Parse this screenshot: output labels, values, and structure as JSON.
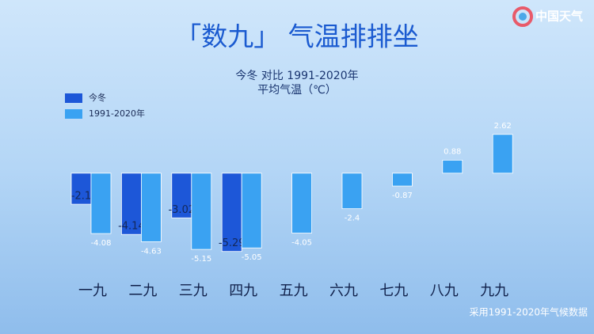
{
  "chart_data": {
    "type": "bar",
    "title": "「数九」 气温排排坐",
    "subtitle": [
      "今冬 对比 1991-2020年",
      "平均气温（℃）"
    ],
    "brand": "中国天气",
    "source": "采用1991-2020年气候数据",
    "categories": [
      "一九",
      "二九",
      "三九",
      "四九",
      "五九",
      "六九",
      "七九",
      "八九",
      "九九"
    ],
    "series": [
      {
        "name": "今冬",
        "color": "#1d57d8",
        "values": [
          -2.1,
          -4.14,
          -3.02,
          -5.29,
          null,
          null,
          null,
          null,
          null
        ]
      },
      {
        "name": "1991-2020年",
        "color": "#3aa2f2",
        "values": [
          -4.08,
          -4.63,
          -5.15,
          -5.05,
          -4.05,
          -2.4,
          -0.87,
          0.88,
          2.62
        ]
      }
    ],
    "ylim": [
      -6,
      4
    ],
    "legend": "top-left"
  }
}
